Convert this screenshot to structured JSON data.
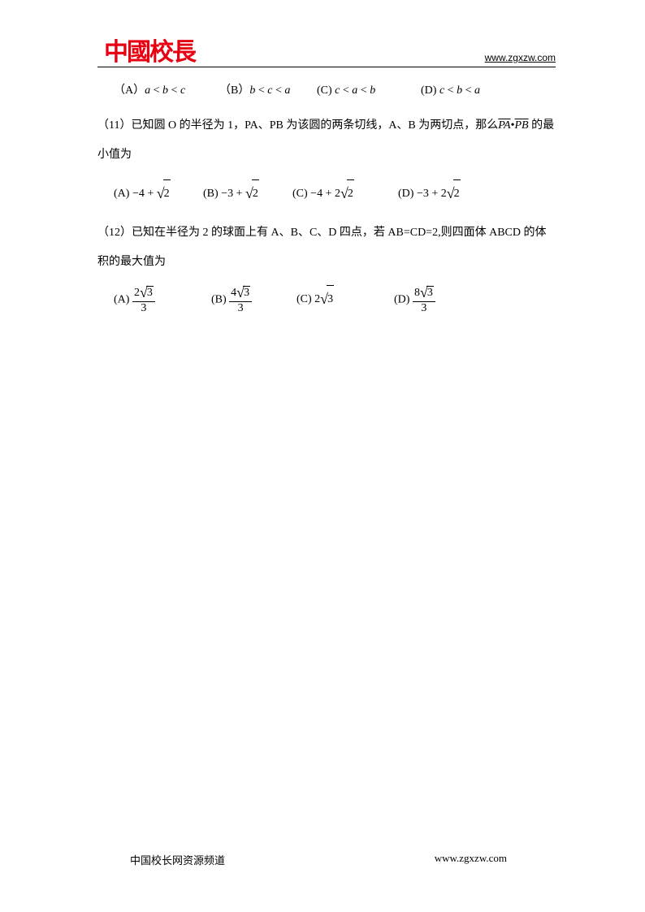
{
  "header": {
    "logo_text": "中國校長",
    "url": "www.zgxzw.com"
  },
  "q10_options": {
    "a_label": "（A）",
    "a_math_html": "<span class='math-i'>a</span> &lt; <span class='math-i'>b</span> &lt; <span class='math-i'>c</span>",
    "b_label": "（B）",
    "b_math_html": "<span class='math-i'>b</span> &lt; <span class='math-i'>c</span> &lt; <span class='math-i'>a</span>",
    "c_label": "(C)  ",
    "c_math_html": "<span class='math-i'>c</span> &lt; <span class='math-i'>a</span> &lt; <span class='math-i'>b</span>",
    "d_label": "(D)  ",
    "d_math_html": "<span class='math-i'>c</span> &lt; <span class='math-i'>b</span> &lt; <span class='math-i'>a</span>"
  },
  "q11": {
    "text_before": "（11）已知圆 O 的半径为 1，PA、PB 为该圆的两条切线，A、B 为两切点，那么",
    "vec1": "PA",
    "dot": "•",
    "vec2": "PB",
    "text_after": " 的最小值为",
    "options": {
      "a_label": "(A)  ",
      "a_math_html": "−4 + <span class='sqrt'><span class='surd'>√</span><span class='radicand'>2</span></span>",
      "b_label": "(B) ",
      "b_math_html": "−3 + <span class='sqrt'><span class='surd'>√</span><span class='radicand'>2</span></span>",
      "c_label": "(C)  ",
      "c_math_html": "−4 + 2<span class='sqrt'><span class='surd'>√</span><span class='radicand'>2</span></span>",
      "d_label": "(D) ",
      "d_math_html": "−3 + 2<span class='sqrt'><span class='surd'>√</span><span class='radicand'>2</span></span>"
    }
  },
  "q12": {
    "text": "（12）已知在半径为 2 的球面上有 A、B、C、D 四点，若 AB=CD=2,则四面体 ABCD 的体积的最大值为",
    "options": {
      "a_label": "(A)  ",
      "a_math_html": "<span class='frac'><span class='num'>2<span class='sqrt'><span class='surd'>√</span><span class='radicand'>3</span></span></span><span class='den'>3</span></span>",
      "b_label": "(B) ",
      "b_math_html": "<span class='frac'><span class='num'>4<span class='sqrt'><span class='surd'>√</span><span class='radicand'>3</span></span></span><span class='den'>3</span></span>",
      "c_label": "(C)  ",
      "c_math_html": "2<span class='sqrt'><span class='surd'>√</span><span class='radicand'>3</span></span>",
      "d_label": "(D)  ",
      "d_math_html": "<span class='frac'><span class='num'>8<span class='sqrt'><span class='surd'>√</span><span class='radicand'>3</span></span></span><span class='den'>3</span></span>"
    }
  },
  "footer": {
    "left": "中国校长网资源频道",
    "right": "www.zgxzw.com"
  }
}
